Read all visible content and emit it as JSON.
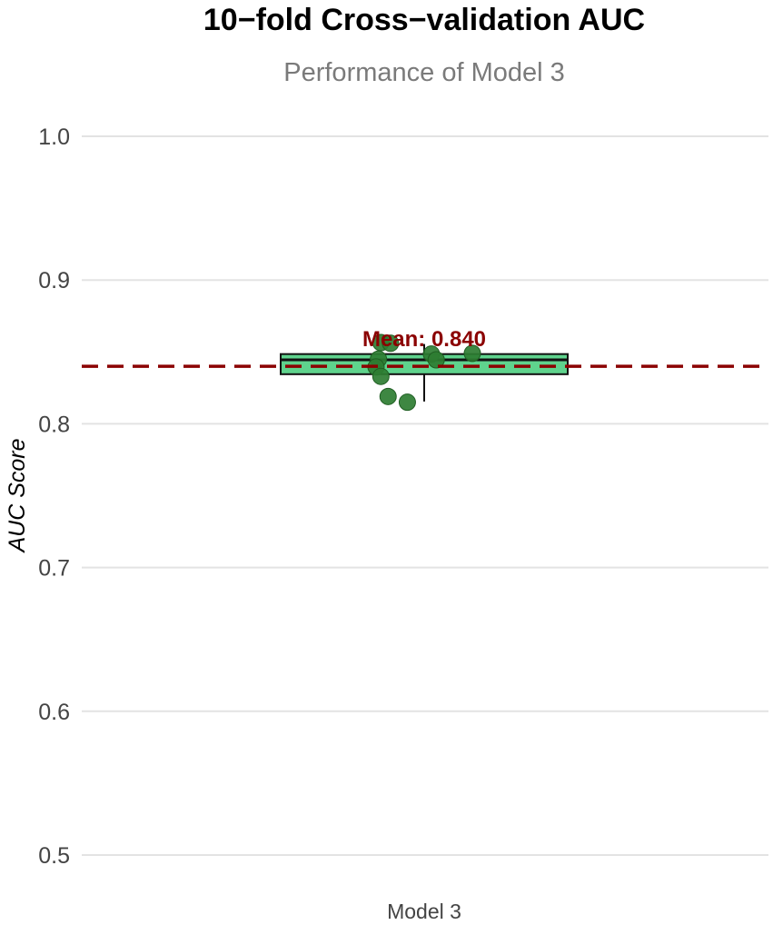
{
  "chart_data": {
    "type": "box",
    "title": "10−fold Cross−validation AUC",
    "subtitle": "Performance of Model 3",
    "xlabel": "",
    "ylabel": "AUC Score",
    "categories": [
      "Model 3"
    ],
    "ylim": [
      0.5,
      1.0
    ],
    "yticks": [
      0.5,
      0.6,
      0.7,
      0.8,
      0.9,
      1.0
    ],
    "ytick_labels": [
      "0.5",
      "0.6",
      "0.7",
      "0.8",
      "0.9",
      "1.0"
    ],
    "grid": true,
    "box": {
      "q1": 0.8345,
      "median": 0.8445,
      "q3": 0.8485,
      "whisker_low": 0.8155,
      "whisker_high": 0.8555
    },
    "points": [
      {
        "x_jitter": -0.18,
        "y": 0.8565
      },
      {
        "x_jitter": -0.14,
        "y": 0.856
      },
      {
        "x_jitter": -0.19,
        "y": 0.845
      },
      {
        "x_jitter": -0.2,
        "y": 0.8395
      },
      {
        "x_jitter": -0.18,
        "y": 0.833
      },
      {
        "x_jitter": -0.15,
        "y": 0.819
      },
      {
        "x_jitter": -0.07,
        "y": 0.815
      },
      {
        "x_jitter": 0.03,
        "y": 0.8485
      },
      {
        "x_jitter": 0.05,
        "y": 0.8445
      },
      {
        "x_jitter": 0.2,
        "y": 0.849
      }
    ],
    "mean": 0.84,
    "mean_label": "Mean: 0.840",
    "colors": {
      "box_fill": "#5fd38d",
      "box_stroke": "#111111",
      "points": "#2e7d32",
      "mean_line": "#8b0000",
      "grid": "#e3e3e3",
      "title": "#000000",
      "subtitle": "#7a7a7a",
      "tick_text": "#444444"
    }
  }
}
